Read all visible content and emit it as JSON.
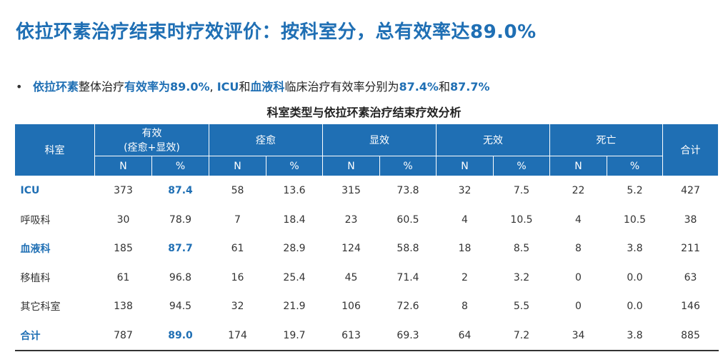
{
  "title": "依拉环素治疗结束时疗效评价：按科室分，总有效率达89.0%",
  "bullet": {
    "marker": "•",
    "p1": "依拉环素",
    "p2": "整体治疗",
    "p3": "有效率为89.0%",
    "p4": ", ",
    "p5": "ICU",
    "p6": "和",
    "p7": "血液科",
    "p8": "临床治疗有效率分别为",
    "p9": "87.4%",
    "p10": "和",
    "p11": "87.7%"
  },
  "table": {
    "caption": "科室类型与依拉环素治疗结束疗效分析",
    "header": {
      "dept": "科室",
      "effective_line1": "有效",
      "effective_line2": "(痊愈+显效)",
      "cured": "痊愈",
      "marked": "显效",
      "ineffective": "无效",
      "death": "死亡",
      "total": "合计",
      "n": "N",
      "pct": "%"
    },
    "rows": [
      {
        "dept": "ICU",
        "eff_n": "373",
        "eff_p": "87.4",
        "cur_n": "58",
        "cur_p": "13.6",
        "mar_n": "315",
        "mar_p": "73.8",
        "ine_n": "32",
        "ine_p": "7.5",
        "dea_n": "22",
        "dea_p": "5.2",
        "total": "427"
      },
      {
        "dept": "呼吸科",
        "eff_n": "30",
        "eff_p": "78.9",
        "cur_n": "7",
        "cur_p": "18.4",
        "mar_n": "23",
        "mar_p": "60.5",
        "ine_n": "4",
        "ine_p": "10.5",
        "dea_n": "4",
        "dea_p": "10.5",
        "total": "38"
      },
      {
        "dept": "血液科",
        "eff_n": "185",
        "eff_p": "87.7",
        "cur_n": "61",
        "cur_p": "28.9",
        "mar_n": "124",
        "mar_p": "58.8",
        "ine_n": "18",
        "ine_p": "8.5",
        "dea_n": "8",
        "dea_p": "3.8",
        "total": "211"
      },
      {
        "dept": "移植科",
        "eff_n": "61",
        "eff_p": "96.8",
        "cur_n": "16",
        "cur_p": "25.4",
        "mar_n": "45",
        "mar_p": "71.4",
        "ine_n": "2",
        "ine_p": "3.2",
        "dea_n": "0",
        "dea_p": "0.0",
        "total": "63"
      },
      {
        "dept": "其它科室",
        "eff_n": "138",
        "eff_p": "94.5",
        "cur_n": "32",
        "cur_p": "21.9",
        "mar_n": "106",
        "mar_p": "72.6",
        "ine_n": "8",
        "ine_p": "5.5",
        "dea_n": "0",
        "dea_p": "0.0",
        "total": "146"
      },
      {
        "dept": "合计",
        "eff_n": "787",
        "eff_p": "89.0",
        "cur_n": "174",
        "cur_p": "19.7",
        "mar_n": "613",
        "mar_p": "69.3",
        "ine_n": "64",
        "ine_p": "7.2",
        "dea_n": "34",
        "dea_p": "3.8",
        "total": "885"
      }
    ]
  },
  "colors": {
    "accent": "#1f6fb4"
  }
}
